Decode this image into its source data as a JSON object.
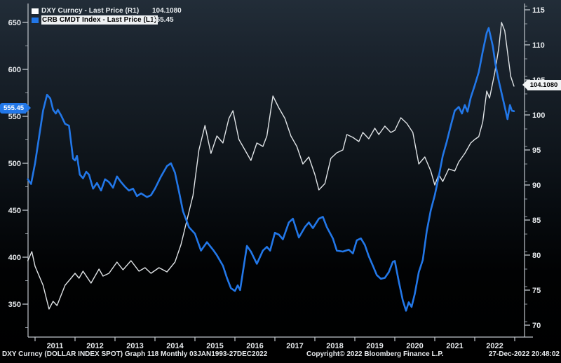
{
  "legend": {
    "items": [
      {
        "id": "dxy",
        "label": "DXY Curncy - Last Price (R1)",
        "value": "104.1080",
        "swatch_color": "#ffffff",
        "highlighted": false
      },
      {
        "id": "crb",
        "label": "CRB CMDT Index - Last Price (L1)",
        "value": "555.45",
        "swatch_color": "#2277e8",
        "highlighted": true
      }
    ]
  },
  "last_value_tags": {
    "left": {
      "text": "555.45",
      "bg": "#2277e8",
      "fg": "#ffffff"
    },
    "right": {
      "text": "104.1080",
      "bg": "#f2f4f5",
      "fg": "#000000"
    }
  },
  "footer": {
    "left": "DXY Curncy (DOLLAR INDEX SPOT) Graph 118  Monthly 03JAN1993-27DEC2022",
    "center": "Copyright© 2022 Bloomberg Finance L.P.",
    "right": "27-Dec-2022 20:48:02"
  },
  "colors": {
    "dxy_line": "#dfe3e6",
    "crb_line": "#2277e8",
    "axis": "#c0c6cc",
    "tick_minor": "#8f979e",
    "tick_text": "#e8ebee"
  },
  "chart_data": {
    "type": "line",
    "title": "",
    "x_axis": {
      "tick_years": [
        2011,
        2012,
        2013,
        2014,
        2015,
        2016,
        2017,
        2018,
        2019,
        2020,
        2021,
        2022
      ],
      "range_years": [
        2010.8,
        2023.2
      ]
    },
    "left_axis": {
      "ticks": [
        350,
        400,
        450,
        500,
        550,
        600,
        650
      ],
      "minor_ticks": [
        325,
        375,
        425,
        475,
        525,
        575,
        625
      ],
      "range": [
        325,
        660
      ],
      "series": "CRB CMDT Index"
    },
    "right_axis": {
      "ticks": [
        70,
        75,
        80,
        85,
        90,
        95,
        100,
        105,
        110,
        115
      ],
      "minor_step": 2.5,
      "range": [
        68,
        117
      ],
      "series": "DXY Curncy"
    },
    "series": [
      {
        "id": "dxy",
        "name": "DXY Curncy - Last Price",
        "axis": "right",
        "color": "#dfe3e6",
        "last": 104.108,
        "points": [
          [
            2010.82,
            79.2
          ],
          [
            2010.92,
            80.5
          ],
          [
            2011.0,
            78.4
          ],
          [
            2011.2,
            75.7
          ],
          [
            2011.35,
            72.3
          ],
          [
            2011.45,
            73.4
          ],
          [
            2011.55,
            72.8
          ],
          [
            2011.75,
            75.7
          ],
          [
            2011.9,
            76.7
          ],
          [
            2012.0,
            77.4
          ],
          [
            2012.1,
            76.7
          ],
          [
            2012.2,
            77.7
          ],
          [
            2012.4,
            76.0
          ],
          [
            2012.6,
            78.0
          ],
          [
            2012.7,
            77.0
          ],
          [
            2012.85,
            77.4
          ],
          [
            2013.05,
            79.0
          ],
          [
            2013.2,
            77.9
          ],
          [
            2013.4,
            79.2
          ],
          [
            2013.6,
            77.7
          ],
          [
            2013.75,
            78.2
          ],
          [
            2013.9,
            77.4
          ],
          [
            2014.1,
            78.2
          ],
          [
            2014.3,
            77.6
          ],
          [
            2014.5,
            79.0
          ],
          [
            2014.65,
            81.5
          ],
          [
            2014.8,
            85.0
          ],
          [
            2014.95,
            88.5
          ],
          [
            2015.1,
            95.0
          ],
          [
            2015.25,
            98.5
          ],
          [
            2015.4,
            94.5
          ],
          [
            2015.55,
            97.0
          ],
          [
            2015.7,
            96.0
          ],
          [
            2015.85,
            99.5
          ],
          [
            2015.95,
            100.6
          ],
          [
            2016.1,
            96.5
          ],
          [
            2016.25,
            95.0
          ],
          [
            2016.4,
            93.5
          ],
          [
            2016.55,
            96.0
          ],
          [
            2016.7,
            95.5
          ],
          [
            2016.8,
            97.0
          ],
          [
            2016.95,
            102.7
          ],
          [
            2017.1,
            101.0
          ],
          [
            2017.25,
            99.5
          ],
          [
            2017.4,
            97.0
          ],
          [
            2017.55,
            95.5
          ],
          [
            2017.7,
            93.0
          ],
          [
            2017.85,
            94.0
          ],
          [
            2018.0,
            91.5
          ],
          [
            2018.1,
            89.3
          ],
          [
            2018.25,
            90.2
          ],
          [
            2018.4,
            93.8
          ],
          [
            2018.55,
            94.6
          ],
          [
            2018.7,
            95.0
          ],
          [
            2018.8,
            97.2
          ],
          [
            2018.95,
            96.8
          ],
          [
            2019.1,
            96.2
          ],
          [
            2019.2,
            97.5
          ],
          [
            2019.35,
            96.6
          ],
          [
            2019.5,
            98.1
          ],
          [
            2019.6,
            97.2
          ],
          [
            2019.75,
            98.4
          ],
          [
            2019.9,
            97.5
          ],
          [
            2020.0,
            97.8
          ],
          [
            2020.15,
            99.6
          ],
          [
            2020.3,
            98.8
          ],
          [
            2020.45,
            97.5
          ],
          [
            2020.6,
            93.0
          ],
          [
            2020.75,
            94.0
          ],
          [
            2020.9,
            92.0
          ],
          [
            2021.0,
            90.0
          ],
          [
            2021.1,
            91.5
          ],
          [
            2021.2,
            90.5
          ],
          [
            2021.35,
            92.3
          ],
          [
            2021.5,
            92.0
          ],
          [
            2021.6,
            93.3
          ],
          [
            2021.75,
            94.5
          ],
          [
            2021.9,
            96.0
          ],
          [
            2022.0,
            96.5
          ],
          [
            2022.1,
            96.9
          ],
          [
            2022.2,
            99.0
          ],
          [
            2022.3,
            103.4
          ],
          [
            2022.37,
            102.4
          ],
          [
            2022.5,
            106.0
          ],
          [
            2022.6,
            109.5
          ],
          [
            2022.67,
            113.2
          ],
          [
            2022.75,
            112.0
          ],
          [
            2022.82,
            109.0
          ],
          [
            2022.9,
            105.5
          ],
          [
            2022.98,
            104.108
          ]
        ]
      },
      {
        "id": "crb",
        "name": "CRB CMDT Index - Last Price",
        "axis": "left",
        "color": "#2277e8",
        "last": 555.45,
        "points": [
          [
            2010.82,
            483
          ],
          [
            2010.9,
            478
          ],
          [
            2011.0,
            500
          ],
          [
            2011.1,
            528
          ],
          [
            2011.2,
            556
          ],
          [
            2011.3,
            573
          ],
          [
            2011.38,
            569
          ],
          [
            2011.45,
            557
          ],
          [
            2011.52,
            553
          ],
          [
            2011.57,
            557
          ],
          [
            2011.65,
            551
          ],
          [
            2011.75,
            542
          ],
          [
            2011.85,
            540
          ],
          [
            2011.95,
            505
          ],
          [
            2012.0,
            503
          ],
          [
            2012.05,
            508
          ],
          [
            2012.12,
            488
          ],
          [
            2012.2,
            484
          ],
          [
            2012.28,
            491
          ],
          [
            2012.35,
            488
          ],
          [
            2012.45,
            473
          ],
          [
            2012.55,
            479
          ],
          [
            2012.65,
            471
          ],
          [
            2012.75,
            483
          ],
          [
            2012.85,
            480
          ],
          [
            2012.95,
            474
          ],
          [
            2013.05,
            486
          ],
          [
            2013.15,
            480
          ],
          [
            2013.25,
            475
          ],
          [
            2013.35,
            471
          ],
          [
            2013.45,
            473
          ],
          [
            2013.55,
            465
          ],
          [
            2013.65,
            468
          ],
          [
            2013.8,
            464
          ],
          [
            2013.9,
            466
          ],
          [
            2014.0,
            473
          ],
          [
            2014.15,
            486
          ],
          [
            2014.3,
            497
          ],
          [
            2014.4,
            500
          ],
          [
            2014.5,
            490
          ],
          [
            2014.6,
            470
          ],
          [
            2014.7,
            449
          ],
          [
            2014.85,
            432
          ],
          [
            2015.0,
            425
          ],
          [
            2015.15,
            407
          ],
          [
            2015.3,
            416
          ],
          [
            2015.45,
            408
          ],
          [
            2015.55,
            402
          ],
          [
            2015.7,
            391
          ],
          [
            2015.8,
            378
          ],
          [
            2015.9,
            367
          ],
          [
            2016.0,
            364
          ],
          [
            2016.07,
            370
          ],
          [
            2016.13,
            365
          ],
          [
            2016.3,
            412
          ],
          [
            2016.4,
            406
          ],
          [
            2016.55,
            393
          ],
          [
            2016.7,
            407
          ],
          [
            2016.8,
            411
          ],
          [
            2016.88,
            407
          ],
          [
            2017.0,
            426
          ],
          [
            2017.1,
            424
          ],
          [
            2017.2,
            419
          ],
          [
            2017.35,
            437
          ],
          [
            2017.45,
            441
          ],
          [
            2017.6,
            421
          ],
          [
            2017.75,
            432
          ],
          [
            2017.85,
            437
          ],
          [
            2017.95,
            431
          ],
          [
            2018.1,
            441
          ],
          [
            2018.2,
            443
          ],
          [
            2018.3,
            432
          ],
          [
            2018.45,
            420
          ],
          [
            2018.55,
            407
          ],
          [
            2018.7,
            406
          ],
          [
            2018.85,
            408
          ],
          [
            2018.95,
            404
          ],
          [
            2019.05,
            418
          ],
          [
            2019.15,
            420
          ],
          [
            2019.25,
            413
          ],
          [
            2019.35,
            401
          ],
          [
            2019.45,
            391
          ],
          [
            2019.55,
            381
          ],
          [
            2019.65,
            377
          ],
          [
            2019.75,
            378
          ],
          [
            2019.85,
            384
          ],
          [
            2019.95,
            395
          ],
          [
            2020.0,
            396
          ],
          [
            2020.1,
            374
          ],
          [
            2020.2,
            354
          ],
          [
            2020.28,
            343
          ],
          [
            2020.35,
            352
          ],
          [
            2020.42,
            347
          ],
          [
            2020.5,
            361
          ],
          [
            2020.6,
            384
          ],
          [
            2020.7,
            397
          ],
          [
            2020.8,
            428
          ],
          [
            2020.9,
            450
          ],
          [
            2021.0,
            466
          ],
          [
            2021.1,
            486
          ],
          [
            2021.2,
            508
          ],
          [
            2021.3,
            523
          ],
          [
            2021.4,
            540
          ],
          [
            2021.5,
            556
          ],
          [
            2021.6,
            560
          ],
          [
            2021.68,
            553
          ],
          [
            2021.75,
            562
          ],
          [
            2021.82,
            555
          ],
          [
            2021.9,
            570
          ],
          [
            2022.0,
            583
          ],
          [
            2022.1,
            597
          ],
          [
            2022.2,
            619
          ],
          [
            2022.3,
            639
          ],
          [
            2022.35,
            644
          ],
          [
            2022.45,
            625
          ],
          [
            2022.52,
            605
          ],
          [
            2022.6,
            588
          ],
          [
            2022.68,
            573
          ],
          [
            2022.75,
            560
          ],
          [
            2022.82,
            547
          ],
          [
            2022.88,
            562
          ],
          [
            2022.93,
            556
          ],
          [
            2022.98,
            555.45
          ]
        ]
      }
    ]
  }
}
